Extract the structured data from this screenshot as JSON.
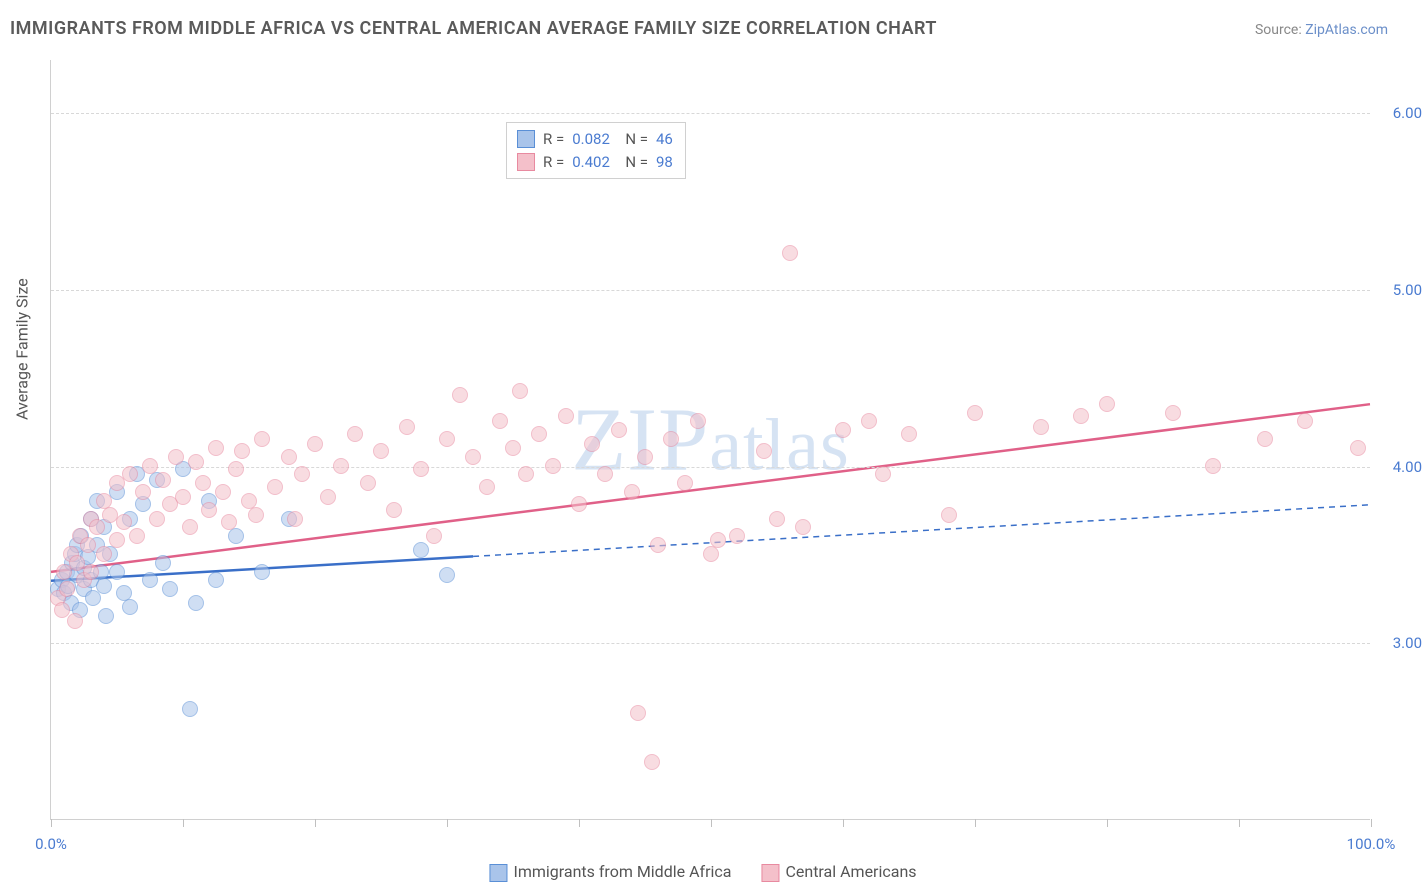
{
  "title": "IMMIGRANTS FROM MIDDLE AFRICA VS CENTRAL AMERICAN AVERAGE FAMILY SIZE CORRELATION CHART",
  "source_label": "Source: ",
  "source_value": "ZipAtlas.com",
  "watermark": "ZIPatlas",
  "yaxis_title": "Average Family Size",
  "chart": {
    "type": "scatter",
    "xlim": [
      0,
      100
    ],
    "ylim": [
      2.0,
      6.3
    ],
    "yticks": [
      3.0,
      4.0,
      5.0,
      6.0
    ],
    "ytick_labels": [
      "3.00",
      "4.00",
      "5.00",
      "6.00"
    ],
    "xtick_positions": [
      0,
      10,
      20,
      30,
      40,
      50,
      60,
      70,
      80,
      90,
      100
    ],
    "xtick_labels": {
      "0": "0.0%",
      "100": "100.0%"
    },
    "background_color": "#ffffff",
    "grid_color": "#d8d8d8",
    "grid_dash": "4,4",
    "marker_radius": 8,
    "marker_opacity": 0.55
  },
  "series": [
    {
      "name": "Immigrants from Middle Africa",
      "short": "blue",
      "fill": "#a9c4ea",
      "stroke": "#5a8fd6",
      "line_color": "#3a6fc8",
      "line_width": 2.5,
      "R": "0.082",
      "N": "46",
      "trend": {
        "x1": 0,
        "y1": 3.35,
        "x2": 100,
        "y2": 3.78,
        "solid_until_x": 32
      },
      "points": [
        [
          0.5,
          3.3
        ],
        [
          0.8,
          3.35
        ],
        [
          1.0,
          3.28
        ],
        [
          1.2,
          3.4
        ],
        [
          1.3,
          3.32
        ],
        [
          1.5,
          3.22
        ],
        [
          1.6,
          3.45
        ],
        [
          1.8,
          3.5
        ],
        [
          2.0,
          3.38
        ],
        [
          2.0,
          3.55
        ],
        [
          2.2,
          3.18
        ],
        [
          2.3,
          3.6
        ],
        [
          2.5,
          3.42
        ],
        [
          2.5,
          3.3
        ],
        [
          2.8,
          3.48
        ],
        [
          3.0,
          3.7
        ],
        [
          3.0,
          3.35
        ],
        [
          3.2,
          3.25
        ],
        [
          3.5,
          3.8
        ],
        [
          3.5,
          3.55
        ],
        [
          3.8,
          3.4
        ],
        [
          4.0,
          3.65
        ],
        [
          4.0,
          3.32
        ],
        [
          4.2,
          3.15
        ],
        [
          4.5,
          3.5
        ],
        [
          5.0,
          3.85
        ],
        [
          5.0,
          3.4
        ],
        [
          5.5,
          3.28
        ],
        [
          6.0,
          3.7
        ],
        [
          6.0,
          3.2
        ],
        [
          6.5,
          3.95
        ],
        [
          7.0,
          3.78
        ],
        [
          7.5,
          3.35
        ],
        [
          8.0,
          3.92
        ],
        [
          8.5,
          3.45
        ],
        [
          9.0,
          3.3
        ],
        [
          10.0,
          3.98
        ],
        [
          10.5,
          2.62
        ],
        [
          11.0,
          3.22
        ],
        [
          12.0,
          3.8
        ],
        [
          12.5,
          3.35
        ],
        [
          14.0,
          3.6
        ],
        [
          16.0,
          3.4
        ],
        [
          18.0,
          3.7
        ],
        [
          28.0,
          3.52
        ],
        [
          30.0,
          3.38
        ]
      ]
    },
    {
      "name": "Central Americans",
      "short": "pink",
      "fill": "#f4c0ca",
      "stroke": "#e88aa0",
      "line_color": "#e06088",
      "line_width": 2.5,
      "R": "0.402",
      "N": "98",
      "trend": {
        "x1": 0,
        "y1": 3.4,
        "x2": 100,
        "y2": 4.35,
        "solid_until_x": 100
      },
      "points": [
        [
          0.5,
          3.25
        ],
        [
          0.8,
          3.18
        ],
        [
          1.0,
          3.4
        ],
        [
          1.2,
          3.3
        ],
        [
          1.5,
          3.5
        ],
        [
          1.8,
          3.12
        ],
        [
          2.0,
          3.45
        ],
        [
          2.2,
          3.6
        ],
        [
          2.5,
          3.35
        ],
        [
          2.8,
          3.55
        ],
        [
          3.0,
          3.7
        ],
        [
          3.0,
          3.4
        ],
        [
          3.5,
          3.65
        ],
        [
          4.0,
          3.8
        ],
        [
          4.0,
          3.5
        ],
        [
          4.5,
          3.72
        ],
        [
          5.0,
          3.9
        ],
        [
          5.0,
          3.58
        ],
        [
          5.5,
          3.68
        ],
        [
          6.0,
          3.95
        ],
        [
          6.5,
          3.6
        ],
        [
          7.0,
          3.85
        ],
        [
          7.5,
          4.0
        ],
        [
          8.0,
          3.7
        ],
        [
          8.5,
          3.92
        ],
        [
          9.0,
          3.78
        ],
        [
          9.5,
          4.05
        ],
        [
          10.0,
          3.82
        ],
        [
          10.5,
          3.65
        ],
        [
          11.0,
          4.02
        ],
        [
          11.5,
          3.9
        ],
        [
          12.0,
          3.75
        ],
        [
          12.5,
          4.1
        ],
        [
          13.0,
          3.85
        ],
        [
          13.5,
          3.68
        ],
        [
          14.0,
          3.98
        ],
        [
          14.5,
          4.08
        ],
        [
          15.0,
          3.8
        ],
        [
          15.5,
          3.72
        ],
        [
          16.0,
          4.15
        ],
        [
          17.0,
          3.88
        ],
        [
          18.0,
          4.05
        ],
        [
          18.5,
          3.7
        ],
        [
          19.0,
          3.95
        ],
        [
          20.0,
          4.12
        ],
        [
          21.0,
          3.82
        ],
        [
          22.0,
          4.0
        ],
        [
          23.0,
          4.18
        ],
        [
          24.0,
          3.9
        ],
        [
          25.0,
          4.08
        ],
        [
          26.0,
          3.75
        ],
        [
          27.0,
          4.22
        ],
        [
          28.0,
          3.98
        ],
        [
          29.0,
          3.6
        ],
        [
          30.0,
          4.15
        ],
        [
          31.0,
          4.4
        ],
        [
          32.0,
          4.05
        ],
        [
          33.0,
          3.88
        ],
        [
          34.0,
          4.25
        ],
        [
          35.0,
          4.1
        ],
        [
          35.5,
          4.42
        ],
        [
          36.0,
          3.95
        ],
        [
          37.0,
          4.18
        ],
        [
          38.0,
          4.0
        ],
        [
          39.0,
          4.28
        ],
        [
          40.0,
          3.78
        ],
        [
          41.0,
          4.12
        ],
        [
          42.0,
          3.95
        ],
        [
          43.0,
          4.2
        ],
        [
          44.0,
          3.85
        ],
        [
          44.5,
          2.6
        ],
        [
          45.0,
          4.05
        ],
        [
          45.5,
          2.32
        ],
        [
          46.0,
          3.55
        ],
        [
          47.0,
          4.15
        ],
        [
          48.0,
          3.9
        ],
        [
          49.0,
          4.25
        ],
        [
          50.0,
          3.5
        ],
        [
          50.5,
          3.58
        ],
        [
          52.0,
          3.6
        ],
        [
          54.0,
          4.08
        ],
        [
          55.0,
          3.7
        ],
        [
          56.0,
          5.2
        ],
        [
          57.0,
          3.65
        ],
        [
          60.0,
          4.2
        ],
        [
          62.0,
          4.25
        ],
        [
          63.0,
          3.95
        ],
        [
          65.0,
          4.18
        ],
        [
          68.0,
          3.72
        ],
        [
          70.0,
          4.3
        ],
        [
          75.0,
          4.22
        ],
        [
          78.0,
          4.28
        ],
        [
          80.0,
          4.35
        ],
        [
          85.0,
          4.3
        ],
        [
          88.0,
          4.0
        ],
        [
          92.0,
          4.15
        ],
        [
          95.0,
          4.25
        ],
        [
          99.0,
          4.1
        ]
      ]
    }
  ]
}
